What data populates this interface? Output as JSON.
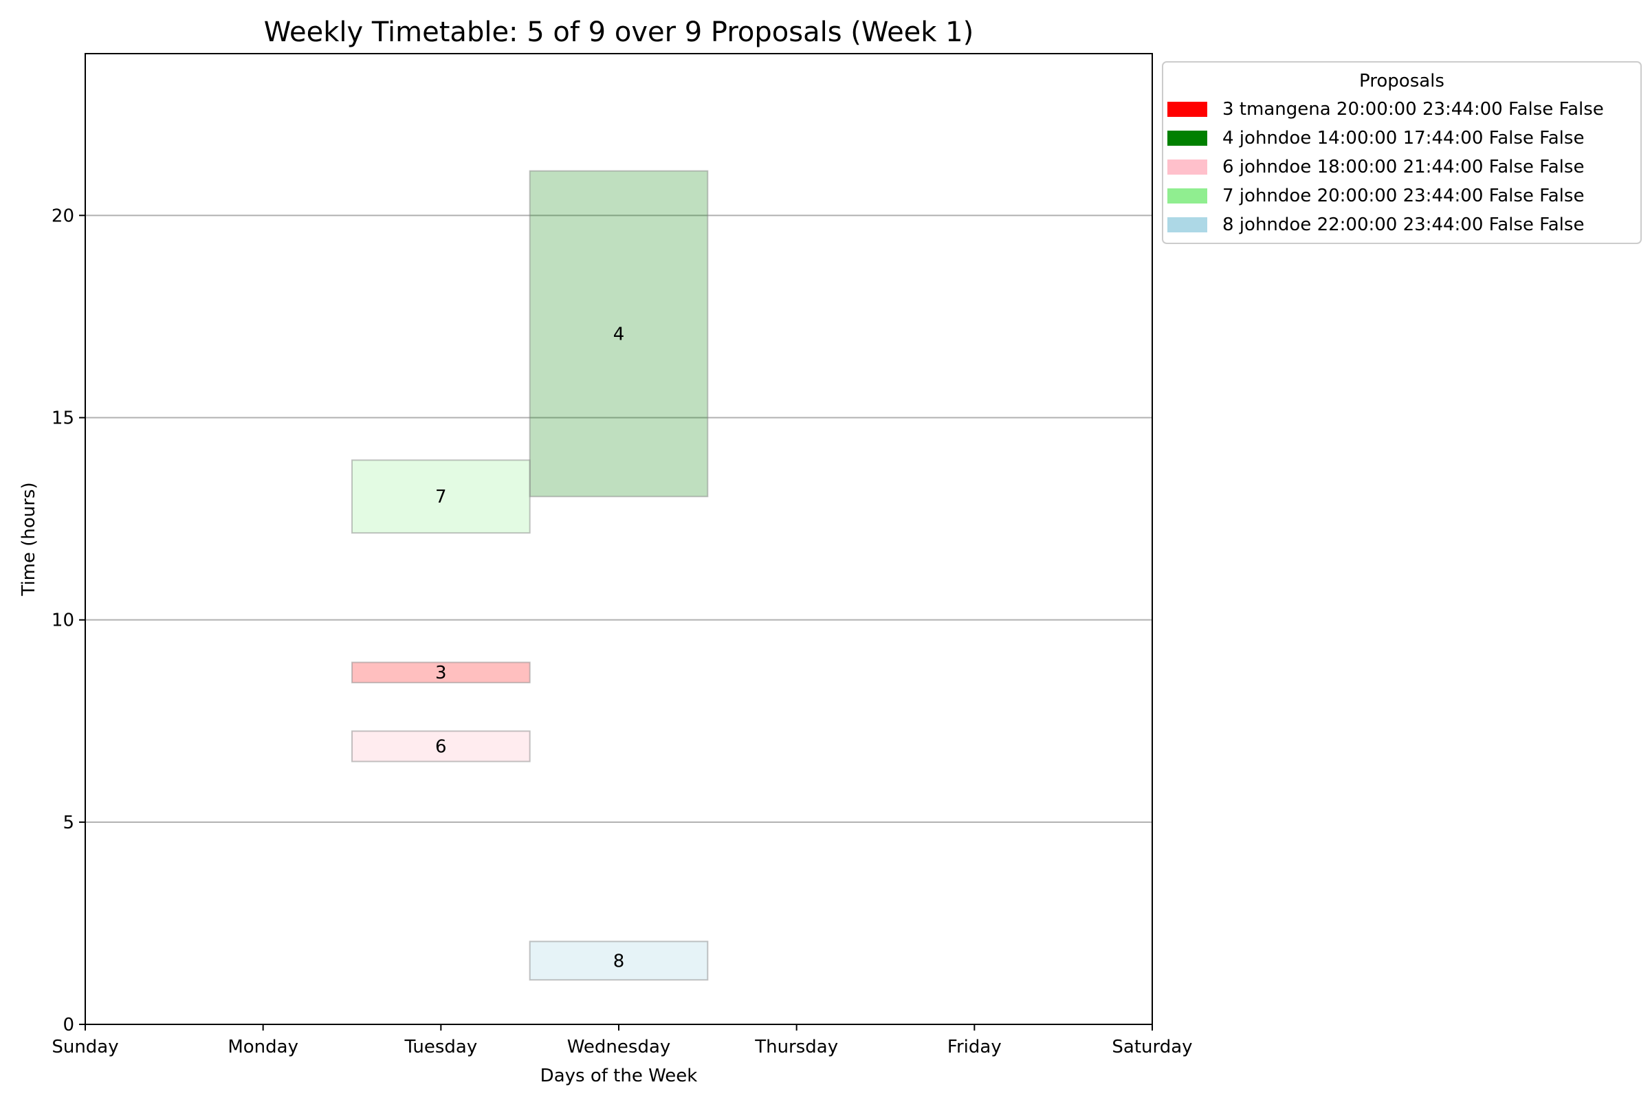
{
  "chart_data": {
    "type": "bar",
    "title": "Weekly Timetable: 5 of 9 over 9 Proposals (Week 1)",
    "xlabel": "Days of the Week",
    "ylabel": "Time (hours)",
    "categories": [
      "Sunday",
      "Monday",
      "Tuesday",
      "Wednesday",
      "Thursday",
      "Friday",
      "Saturday"
    ],
    "xlim": [
      0,
      6
    ],
    "ylim": [
      0,
      24
    ],
    "yticks": [
      0,
      5,
      10,
      15,
      20
    ],
    "grid": "y-axis major",
    "legend": {
      "title": "Proposals",
      "placement": "outside top-right",
      "entries": [
        {
          "label": "3 tmangena 20:00:00 23:44:00 False False",
          "color": "#ff0000"
        },
        {
          "label": "4 johndoe 14:00:00 17:44:00 False False",
          "color": "#008000"
        },
        {
          "label": "6 johndoe 18:00:00 21:44:00 False False",
          "color": "#ffc0cb"
        },
        {
          "label": "7 johndoe 20:00:00 23:44:00 False False",
          "color": "#90ee90"
        },
        {
          "label": "8 johndoe 22:00:00 23:44:00 False False",
          "color": "#add8e6"
        }
      ]
    },
    "bars": [
      {
        "label": "3",
        "day": "Tuesday",
        "start": 8.45,
        "end": 8.95,
        "color": "#ff0000",
        "alpha": 0.25
      },
      {
        "label": "4",
        "day": "Wednesday",
        "start": 13.05,
        "end": 21.1,
        "color": "#008000",
        "alpha": 0.25
      },
      {
        "label": "6",
        "day": "Tuesday",
        "start": 6.5,
        "end": 7.25,
        "color": "#ffc0cb",
        "alpha": 0.3
      },
      {
        "label": "7",
        "day": "Tuesday",
        "start": 12.15,
        "end": 13.95,
        "color": "#90ee90",
        "alpha": 0.25
      },
      {
        "label": "8",
        "day": "Wednesday",
        "start": 1.1,
        "end": 2.05,
        "color": "#add8e6",
        "alpha": 0.3
      }
    ]
  }
}
